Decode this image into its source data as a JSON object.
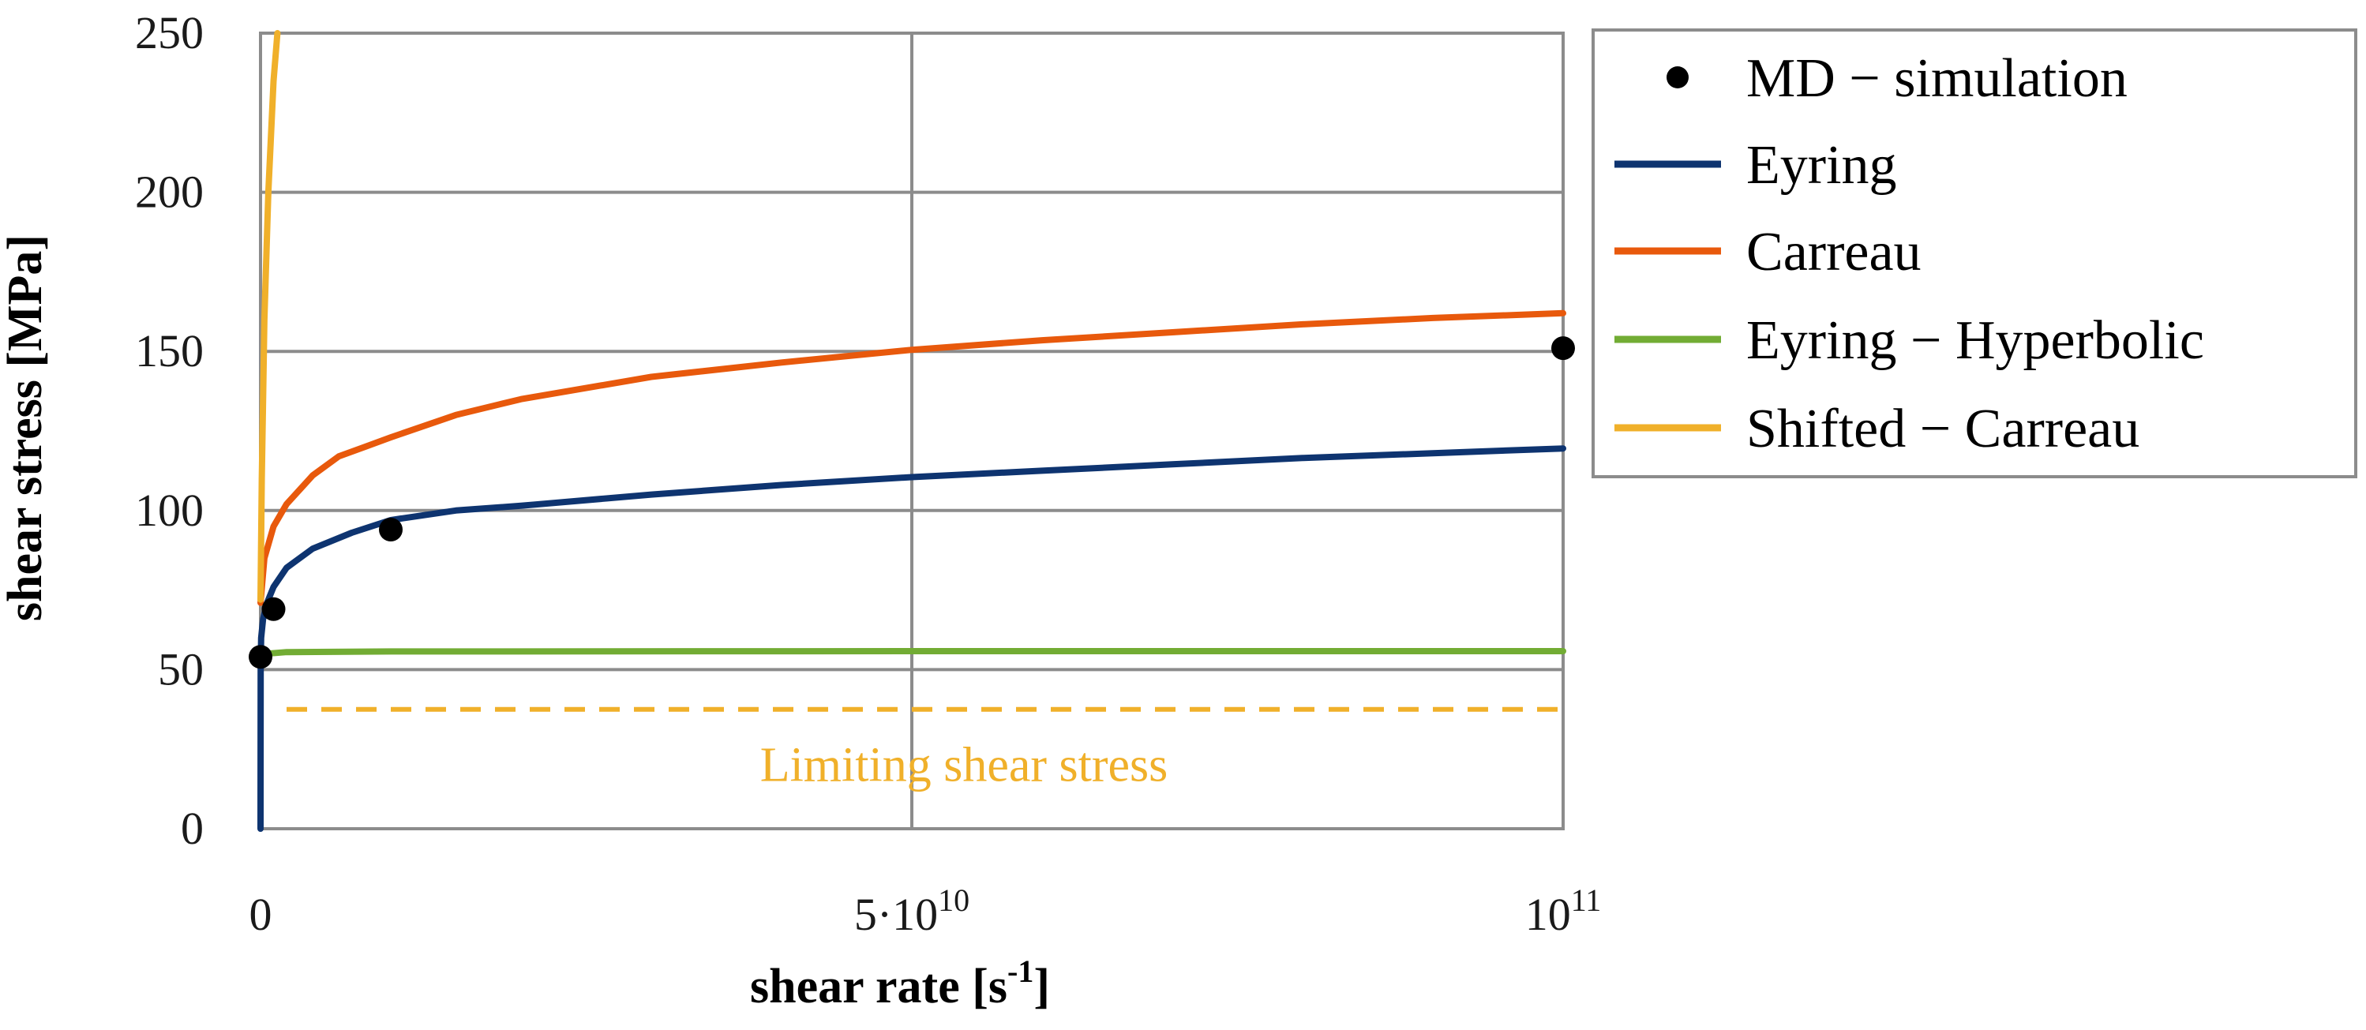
{
  "chart_data": {
    "type": "line",
    "xlabel": "shear rate [s",
    "xlabel_sup": "-1",
    "xlabel_end": "]",
    "ylabel": "shear stress [MPa]",
    "xlim": [
      0,
      100000000000
    ],
    "ylim": [
      0,
      250
    ],
    "y_ticks": [
      "0",
      "50",
      "100",
      "150",
      "200",
      "250"
    ],
    "x_ticks": [
      {
        "value": 0,
        "base": "0",
        "sup": ""
      },
      {
        "value": 50000000000,
        "base": "5·10",
        "sup": "10"
      },
      {
        "value": 100000000000,
        "base": "10",
        "sup": "11"
      }
    ],
    "grid": true,
    "legend_position": "right",
    "legend": [
      {
        "label": "MD − simulation",
        "marker": "dot",
        "color": "#000000"
      },
      {
        "label": "Eyring",
        "marker": "line",
        "color": "#0e3470"
      },
      {
        "label": "Carreau",
        "marker": "line",
        "color": "#e8590c"
      },
      {
        "label": "Eyring − Hyperbolic",
        "marker": "line",
        "color": "#72ac34"
      },
      {
        "label": "Shifted − Carreau",
        "marker": "line",
        "color": "#f0b02a"
      }
    ],
    "series": [
      {
        "name": "MD − simulation",
        "kind": "scatter",
        "color": "#000000",
        "x": [
          0,
          1000000000,
          10000000000,
          100000000000
        ],
        "y": [
          54,
          69,
          94,
          151
        ]
      },
      {
        "name": "Eyring",
        "kind": "line",
        "color": "#0e3470",
        "x": [
          0,
          10000000,
          50000000,
          200000000,
          500000000,
          1000000000,
          2000000000,
          4000000000,
          7000000000,
          10000000000,
          15000000000,
          20000000000,
          30000000000,
          40000000000,
          50000000000,
          60000000000,
          70000000000,
          80000000000,
          90000000000,
          100000000000
        ],
        "y": [
          0,
          52,
          60,
          66,
          71,
          76,
          82,
          88,
          93,
          97,
          100,
          101.5,
          105,
          108,
          110.5,
          112.5,
          114.5,
          116.5,
          118,
          119.5
        ]
      },
      {
        "name": "Carreau",
        "kind": "line",
        "color": "#e8590c",
        "x": [
          0,
          300000000,
          1000000000,
          2000000000,
          4000000000,
          6000000000,
          8000000000,
          10000000000,
          15000000000,
          20000000000,
          30000000000,
          40000000000,
          50000000000,
          60000000000,
          70000000000,
          80000000000,
          90000000000,
          100000000000
        ],
        "y": [
          71,
          85,
          95,
          102,
          111,
          117,
          120,
          123,
          130,
          135,
          142,
          146.5,
          150.5,
          153.5,
          156,
          158.5,
          160.5,
          162
        ]
      },
      {
        "name": "Eyring − Hyperbolic",
        "kind": "line",
        "color": "#72ac34",
        "x": [
          0,
          500000000,
          2000000000,
          10000000000,
          50000000000,
          100000000000
        ],
        "y": [
          54,
          55,
          55.5,
          55.7,
          55.8,
          55.8
        ]
      },
      {
        "name": "Shifted − Carreau",
        "kind": "line",
        "color": "#f0b02a",
        "x": [
          0,
          100000000,
          300000000,
          600000000,
          1000000000,
          1300000000
        ],
        "y": [
          72,
          110,
          160,
          200,
          235,
          250
        ]
      },
      {
        "name": "Limiting shear stress",
        "kind": "dashed",
        "color": "#f0b02a",
        "x": [
          2000000000,
          100000000000
        ],
        "y": [
          37.5,
          37.5
        ]
      }
    ],
    "annotations": [
      {
        "text": "Limiting shear stress",
        "x": 54000000000,
        "y": 20,
        "color": "#f0b02a"
      }
    ]
  }
}
